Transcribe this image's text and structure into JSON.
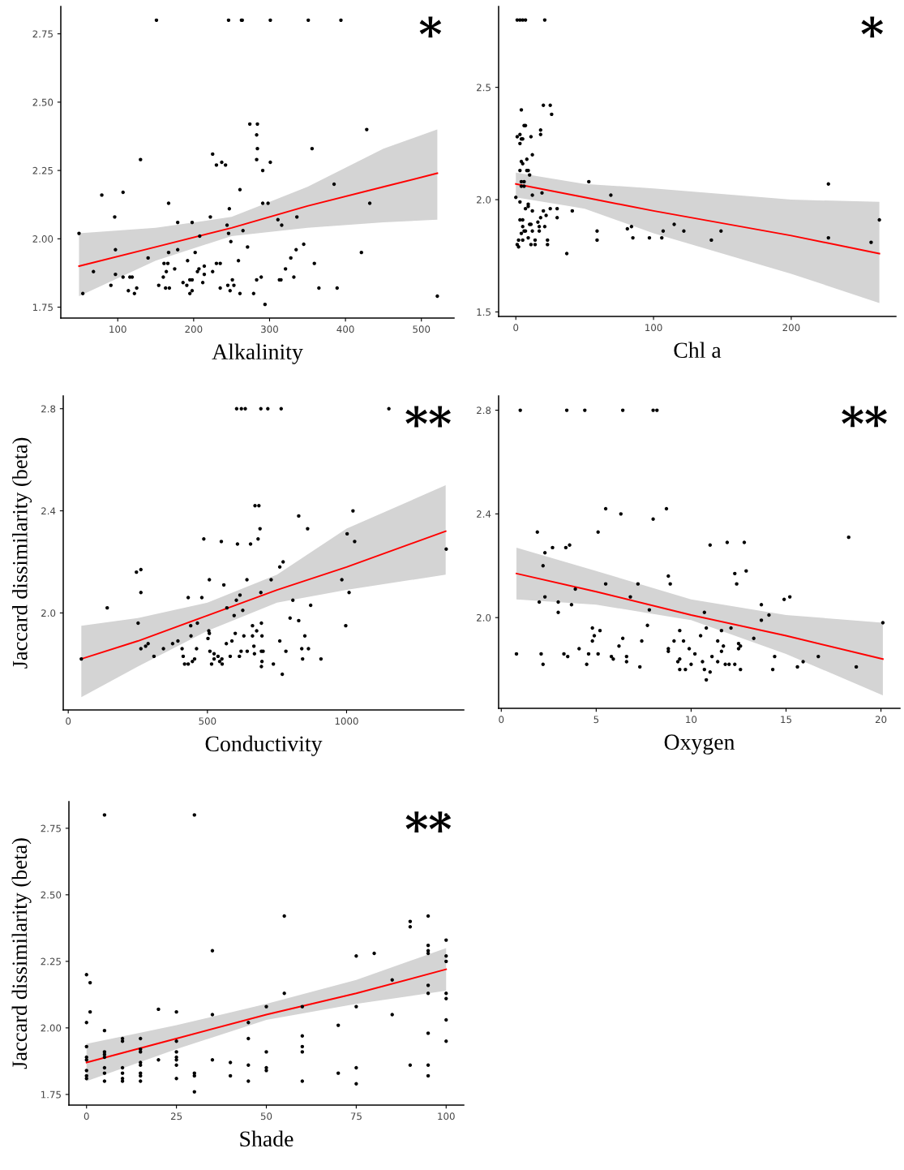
{
  "chart_data": [
    {
      "type": "scatter",
      "xlabel": "Alkalinity",
      "annotations": [
        "*"
      ],
      "xlim": [
        25,
        543
      ],
      "ylim": [
        1.71,
        2.85
      ],
      "xticks": [
        100,
        200,
        300,
        400,
        500
      ],
      "yticks": [
        {
          "value": 1.75,
          "label": "1.75"
        },
        {
          "value": 2.0,
          "label": "2.00"
        },
        {
          "value": 2.25,
          "label": "2.25"
        },
        {
          "value": 2.5,
          "label": "2.50"
        },
        {
          "value": 2.75,
          "label": "2.75"
        }
      ],
      "series": [
        {
          "marker": "circle",
          "color": "#000000",
          "x": [
            151,
            246,
            263,
            264,
            301,
            351,
            394,
            49,
            54,
            68,
            79,
            91,
            96,
            97,
            97,
            107,
            107,
            114,
            116,
            119,
            122,
            125,
            130,
            140,
            154,
            160,
            161,
            164,
            163,
            166,
            167,
            167,
            168,
            175,
            179,
            179,
            186,
            191,
            192,
            195,
            195,
            198,
            198,
            198,
            202,
            205,
            207,
            208,
            212,
            214,
            214,
            222,
            225,
            225,
            230,
            230,
            235,
            235,
            237,
            242,
            244,
            245,
            246,
            247,
            248,
            249,
            251,
            253,
            259,
            261,
            261,
            265,
            271,
            274,
            279,
            283,
            283,
            283,
            284,
            284,
            289,
            291,
            291,
            294,
            298,
            301,
            311,
            313,
            315,
            316,
            321,
            328,
            332,
            335,
            336,
            345,
            356,
            359,
            365,
            385,
            389,
            421,
            428,
            432,
            521
          ],
          "values": [
            2.8,
            2.8,
            2.8,
            2.8,
            2.8,
            2.8,
            2.8,
            2.02,
            1.8,
            1.88,
            2.16,
            1.83,
            2.08,
            1.96,
            1.87,
            2.17,
            1.86,
            1.81,
            1.86,
            1.86,
            1.8,
            1.82,
            2.29,
            1.93,
            1.83,
            1.86,
            1.91,
            1.88,
            1.82,
            1.91,
            2.13,
            1.95,
            1.82,
            1.89,
            2.06,
            1.96,
            1.84,
            1.83,
            1.92,
            1.85,
            1.8,
            1.81,
            1.85,
            2.06,
            1.95,
            1.88,
            1.89,
            2.01,
            1.84,
            1.87,
            1.9,
            2.08,
            2.31,
            1.88,
            2.27,
            1.91,
            1.82,
            1.91,
            2.28,
            2.27,
            2.05,
            1.83,
            2.02,
            2.11,
            1.81,
            1.99,
            1.85,
            1.83,
            1.92,
            2.18,
            1.8,
            2.03,
            1.97,
            2.42,
            1.8,
            2.38,
            2.29,
            1.85,
            2.33,
            2.42,
            1.86,
            2.25,
            2.13,
            1.76,
            2.13,
            2.28,
            2.07,
            1.85,
            1.85,
            2.05,
            1.89,
            1.93,
            1.86,
            1.96,
            2.08,
            1.98,
            2.33,
            1.91,
            1.82,
            2.2,
            1.82,
            1.95,
            2.4,
            2.13,
            1.79
          ]
        },
        {
          "type": "line",
          "color": "#ff0000",
          "x": [
            49,
            150,
            250,
            350,
            450,
            521
          ],
          "values": [
            1.9,
            1.97,
            2.04,
            2.12,
            2.19,
            2.24
          ],
          "lower": [
            1.79,
            1.92,
            2.01,
            2.04,
            2.06,
            2.07
          ],
          "upper": [
            2.02,
            2.04,
            2.08,
            2.19,
            2.33,
            2.4
          ]
        }
      ]
    },
    {
      "type": "scatter",
      "xlabel": "Chl a",
      "annotations": [
        "*"
      ],
      "xlim": [
        -12.5,
        276
      ],
      "ylim": [
        1.48,
        2.86
      ],
      "xticks": [
        0,
        100,
        200
      ],
      "yticks": [
        {
          "value": 1.5,
          "label": "1.5"
        },
        {
          "value": 2.0,
          "label": "2.0"
        },
        {
          "value": 2.5,
          "label": "2.5"
        }
      ],
      "series": [
        {
          "marker": "circle",
          "color": "#000000",
          "x": [
            1,
            3,
            5,
            7,
            21,
            0,
            1,
            1,
            2,
            2,
            3,
            3,
            3,
            3,
            3,
            4,
            4,
            4,
            4,
            4,
            4,
            5,
            5,
            5,
            5,
            5,
            6,
            6,
            6,
            6,
            7,
            7,
            7,
            8,
            8,
            9,
            9,
            9,
            9,
            10,
            10,
            11,
            11,
            11,
            12,
            12,
            12,
            12,
            14,
            14,
            16,
            17,
            17,
            18,
            18,
            18,
            19,
            20,
            20,
            21,
            22,
            23,
            23,
            25,
            25,
            26,
            30,
            30,
            37,
            41,
            53,
            59,
            59,
            69,
            81,
            84,
            85,
            97,
            106,
            107,
            115,
            122,
            142,
            149,
            227,
            227,
            258,
            264
          ],
          "values": [
            2.8,
            2.8,
            2.8,
            2.8,
            2.8,
            2.01,
            1.8,
            2.28,
            1.79,
            1.82,
            2.13,
            1.91,
            1.99,
            2.25,
            2.29,
            2.4,
            2.06,
            1.85,
            2.27,
            2.17,
            2.08,
            1.82,
            1.88,
            1.91,
            2.27,
            2.16,
            2.06,
            2.33,
            2.08,
            1.86,
            2.33,
            1.96,
            1.86,
            2.13,
            2.18,
            2.13,
            1.97,
            1.83,
            1.98,
            1.89,
            2.11,
            2.28,
            1.89,
            1.8,
            2.2,
            2.02,
            1.95,
            1.86,
            1.82,
            1.8,
            1.9,
            1.88,
            1.86,
            1.92,
            2.31,
            2.29,
            2.03,
            2.42,
            1.95,
            1.88,
            1.93,
            1.82,
            1.8,
            1.96,
            2.42,
            2.38,
            1.96,
            1.92,
            1.76,
            1.95,
            2.08,
            1.86,
            1.82,
            2.02,
            1.87,
            1.88,
            1.83,
            1.83,
            1.83,
            1.86,
            1.89,
            1.86,
            1.82,
            1.86,
            2.07,
            1.83,
            1.81,
            1.91
          ]
        },
        {
          "type": "line",
          "color": "#ff0000",
          "x": [
            0,
            50,
            100,
            200,
            264
          ],
          "values": [
            2.07,
            2.01,
            1.95,
            1.84,
            1.76
          ],
          "lower": [
            2.01,
            1.96,
            1.85,
            1.67,
            1.54
          ],
          "upper": [
            2.12,
            2.07,
            2.05,
            2.0,
            1.99
          ]
        }
      ]
    },
    {
      "type": "scatter",
      "xlabel": "Conductivity",
      "ylabel": "Jaccard dissimilarity (beta)",
      "annotations": [
        "**"
      ],
      "xlim": [
        -18,
        1421
      ],
      "ylim": [
        1.62,
        2.85
      ],
      "xticks": [
        0,
        500,
        1000
      ],
      "yticks": [
        {
          "value": 2.0,
          "label": "2.0"
        },
        {
          "value": 2.4,
          "label": "2.4"
        },
        {
          "value": 2.8,
          "label": "2.8"
        }
      ],
      "series": [
        {
          "marker": "circle",
          "color": "#000000",
          "x": [
            605,
            622,
            636,
            692,
            717,
            765,
            1152,
            47,
            140,
            245,
            251,
            261,
            261,
            261,
            278,
            287,
            308,
            342,
            375,
            394,
            409,
            413,
            418,
            431,
            431,
            440,
            441,
            446,
            454,
            461,
            464,
            480,
            487,
            502,
            505,
            507,
            507,
            509,
            515,
            524,
            524,
            538,
            544,
            550,
            552,
            553,
            559,
            568,
            570,
            582,
            588,
            596,
            600,
            604,
            608,
            615,
            617,
            621,
            627,
            631,
            642,
            643,
            655,
            662,
            662,
            667,
            669,
            671,
            677,
            682,
            685,
            689,
            692,
            694,
            694,
            696,
            694,
            696,
            700,
            729,
            737,
            760,
            760,
            769,
            772,
            782,
            807,
            797,
            828,
            828,
            839,
            842,
            850,
            860,
            863,
            871,
            908,
            983,
            997,
            1002,
            1009,
            1023,
            1029,
            1358
          ],
          "values": [
            2.8,
            2.8,
            2.8,
            2.8,
            2.8,
            2.8,
            2.8,
            1.82,
            2.02,
            2.16,
            1.96,
            2.17,
            2.08,
            1.86,
            1.87,
            1.88,
            1.83,
            1.86,
            1.88,
            1.89,
            1.86,
            1.83,
            1.8,
            2.06,
            1.8,
            1.95,
            1.91,
            1.81,
            1.82,
            1.86,
            1.96,
            2.06,
            2.29,
            1.9,
            1.93,
            2.13,
            1.92,
            1.85,
            1.8,
            1.84,
            1.82,
            1.83,
            1.81,
            2.28,
            1.82,
            1.8,
            2.11,
            1.88,
            2.02,
            1.83,
            1.89,
            1.99,
            1.92,
            2.05,
            2.27,
            1.83,
            2.07,
            1.85,
            2.01,
            1.91,
            2.13,
            1.85,
            2.27,
            1.95,
            1.91,
            1.87,
            1.84,
            2.42,
            1.93,
            2.29,
            2.42,
            2.33,
            2.08,
            1.96,
            1.85,
            1.91,
            1.79,
            1.81,
            1.85,
            2.13,
            1.8,
            2.18,
            1.89,
            1.76,
            2.2,
            1.85,
            2.05,
            1.98,
            2.38,
            1.97,
            1.86,
            1.82,
            1.91,
            2.33,
            1.86,
            2.03,
            1.82,
            2.13,
            1.95,
            2.31,
            2.08,
            2.4,
            2.28,
            2.25
          ]
        },
        {
          "type": "line",
          "color": "#ff0000",
          "x": [
            47,
            250,
            500,
            750,
            1000,
            1356
          ],
          "values": [
            1.82,
            1.89,
            1.99,
            2.09,
            2.18,
            2.32
          ],
          "lower": [
            1.67,
            1.79,
            1.93,
            2.04,
            2.09,
            2.15
          ],
          "upper": [
            1.95,
            1.98,
            2.04,
            2.15,
            2.33,
            2.5
          ]
        }
      ]
    },
    {
      "type": "scatter",
      "xlabel": "Oxygen",
      "annotations": [
        "**"
      ],
      "xlim": [
        -0.14,
        21
      ],
      "ylim": [
        1.65,
        2.855
      ],
      "xticks": [
        0,
        5,
        10,
        15,
        20
      ],
      "yticks": [
        {
          "value": 2.0,
          "label": "2.0"
        },
        {
          "value": 2.4,
          "label": "2.4"
        },
        {
          "value": 2.8,
          "label": "2.8"
        }
      ],
      "series": [
        {
          "marker": "circle",
          "color": "#000000",
          "x": [
            1.0,
            3.45,
            4.4,
            6.4,
            8.0,
            8.2,
            0.8,
            1.9,
            2.0,
            2.1,
            2.2,
            2.2,
            2.3,
            2.3,
            2.7,
            3.0,
            3.0,
            3.3,
            3.4,
            3.5,
            3.6,
            3.7,
            3.9,
            4.1,
            4.5,
            4.6,
            4.8,
            4.8,
            4.9,
            5.1,
            5.1,
            5.2,
            5.5,
            5.5,
            5.8,
            5.9,
            6.2,
            6.3,
            6.4,
            6.6,
            6.6,
            6.8,
            7.2,
            7.3,
            7.4,
            7.7,
            7.8,
            8.0,
            8.7,
            8.8,
            8.8,
            8.8,
            8.9,
            9.1,
            9.3,
            9.4,
            9.4,
            9.4,
            9.6,
            9.7,
            9.9,
            10.0,
            10.2,
            10.5,
            10.6,
            10.7,
            10.7,
            10.8,
            10.8,
            11.0,
            11.0,
            11.1,
            11.4,
            11.4,
            11.6,
            11.6,
            11.7,
            11.8,
            11.9,
            12.0,
            12.1,
            12.3,
            12.3,
            12.4,
            12.5,
            12.5,
            12.6,
            12.6,
            12.8,
            12.9,
            13.3,
            13.7,
            13.7,
            14.1,
            14.3,
            14.4,
            14.9,
            15.2,
            15.6,
            15.9,
            16.7,
            18.3,
            18.7,
            20.1
          ],
          "values": [
            2.8,
            2.8,
            2.8,
            2.8,
            2.8,
            2.8,
            1.86,
            2.33,
            2.06,
            1.86,
            1.82,
            2.2,
            2.25,
            2.08,
            2.27,
            2.02,
            2.06,
            1.86,
            2.27,
            1.85,
            2.28,
            2.05,
            2.11,
            1.88,
            1.82,
            1.86,
            1.96,
            1.91,
            1.93,
            2.33,
            1.86,
            1.95,
            2.42,
            2.13,
            1.85,
            1.84,
            1.89,
            2.4,
            1.92,
            1.85,
            1.83,
            2.08,
            2.13,
            1.81,
            1.91,
            1.97,
            2.03,
            2.38,
            2.42,
            2.16,
            1.88,
            1.87,
            2.13,
            1.91,
            1.83,
            1.84,
            1.95,
            1.8,
            1.91,
            1.8,
            1.88,
            1.82,
            1.86,
            1.93,
            1.83,
            2.02,
            1.8,
            1.96,
            1.76,
            1.79,
            2.28,
            1.85,
            1.83,
            1.91,
            1.95,
            1.87,
            1.89,
            1.82,
            2.29,
            1.82,
            1.96,
            2.17,
            1.82,
            2.13,
            1.9,
            1.88,
            1.89,
            1.8,
            2.29,
            2.18,
            1.92,
            2.05,
            1.99,
            2.01,
            1.8,
            1.85,
            2.07,
            2.08,
            1.81,
            1.83,
            1.85,
            2.31,
            1.81,
            1.98
          ]
        },
        {
          "type": "line",
          "color": "#ff0000",
          "x": [
            0.8,
            5,
            10,
            15,
            20.1
          ],
          "values": [
            2.17,
            2.1,
            2.01,
            1.93,
            1.84
          ],
          "lower": [
            2.07,
            2.05,
            1.99,
            1.86,
            1.7
          ],
          "upper": [
            2.27,
            2.18,
            2.07,
            2.01,
            1.98
          ]
        }
      ]
    },
    {
      "type": "scatter",
      "xlabel": "Shade",
      "ylabel": "Jaccard dissimilarity (beta)",
      "annotations": [
        "**"
      ],
      "xlim": [
        -4.9,
        104.9
      ],
      "ylim": [
        1.71,
        2.85
      ],
      "xticks": [
        0,
        25,
        50,
        75,
        100
      ],
      "yticks": [
        {
          "value": 1.75,
          "label": "1.75"
        },
        {
          "value": 2.0,
          "label": "2.00"
        },
        {
          "value": 2.25,
          "label": "2.25"
        },
        {
          "value": 2.5,
          "label": "2.50"
        },
        {
          "value": 2.75,
          "label": "2.75"
        }
      ],
      "series": [
        {
          "marker": "circle",
          "color": "#000000",
          "x": [
            0,
            0,
            0,
            0,
            0,
            0,
            0,
            0,
            1,
            1,
            5,
            5,
            5,
            5,
            5,
            5,
            5,
            5,
            10,
            10,
            10,
            10,
            10,
            10,
            15,
            15,
            15,
            15,
            15,
            15,
            15,
            15,
            20,
            20,
            25,
            25,
            25,
            25,
            25,
            25,
            25,
            30,
            30,
            30,
            30,
            35,
            35,
            35,
            40,
            40,
            45,
            45,
            45,
            45,
            50,
            50,
            50,
            50,
            55,
            55,
            60,
            60,
            60,
            60,
            60,
            70,
            70,
            75,
            75,
            75,
            75,
            80,
            85,
            85,
            90,
            90,
            90,
            95,
            95,
            95,
            95,
            95,
            95,
            95,
            95,
            95,
            100,
            100,
            100,
            100,
            100,
            100,
            100,
            100
          ],
          "values": [
            2.2,
            2.02,
            1.93,
            1.89,
            1.88,
            1.84,
            1.82,
            1.81,
            2.17,
            2.06,
            2.8,
            1.99,
            1.91,
            1.9,
            1.89,
            1.85,
            1.83,
            1.8,
            1.96,
            1.95,
            1.85,
            1.83,
            1.81,
            1.8,
            1.96,
            1.92,
            1.91,
            1.87,
            1.86,
            1.83,
            1.82,
            1.8,
            2.07,
            1.88,
            2.06,
            1.95,
            1.91,
            1.89,
            1.88,
            1.86,
            1.81,
            2.8,
            1.83,
            1.82,
            1.76,
            2.29,
            2.05,
            1.88,
            1.87,
            1.82,
            2.02,
            1.96,
            1.86,
            1.8,
            2.08,
            1.91,
            1.85,
            1.84,
            2.42,
            2.13,
            2.08,
            1.97,
            1.93,
            1.91,
            1.8,
            2.01,
            1.83,
            2.27,
            2.08,
            1.85,
            1.79,
            2.28,
            2.18,
            2.05,
            2.4,
            2.38,
            1.86,
            2.42,
            2.31,
            2.29,
            2.28,
            2.16,
            2.13,
            1.98,
            1.86,
            1.82,
            2.8,
            2.33,
            2.27,
            2.25,
            2.13,
            2.11,
            2.03,
            1.95
          ]
        },
        {
          "type": "line",
          "color": "#ff0000",
          "x": [
            0,
            25,
            50,
            75,
            100
          ],
          "values": [
            1.87,
            1.96,
            2.05,
            2.13,
            2.22
          ],
          "lower": [
            1.8,
            1.92,
            2.03,
            2.09,
            2.14
          ],
          "upper": [
            1.94,
            2.01,
            2.09,
            2.18,
            2.3
          ]
        }
      ]
    }
  ]
}
